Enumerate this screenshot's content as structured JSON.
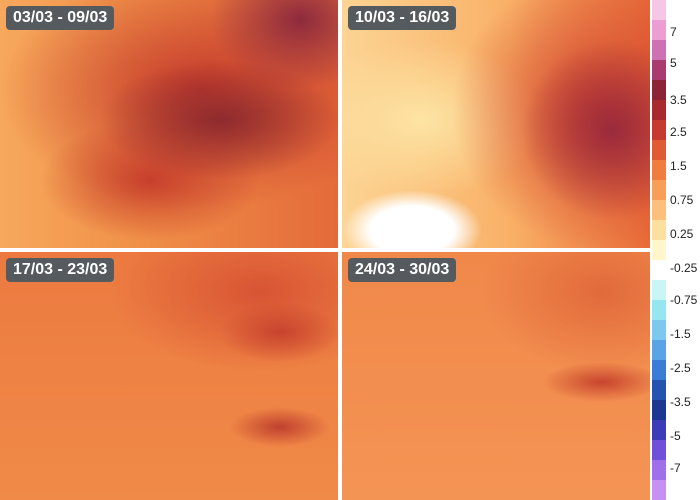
{
  "panels": [
    {
      "label": "03/03 - 09/03"
    },
    {
      "label": "10/03 - 16/03"
    },
    {
      "label": "17/03 - 23/03"
    },
    {
      "label": "24/03 - 30/03"
    }
  ],
  "legend": {
    "labels": [
      "7",
      "5",
      "3.5",
      "2.5",
      "1.5",
      "0.75",
      "0.25",
      "-0.25",
      "-0.75",
      "-1.5",
      "-2.5",
      "-3.5",
      "-5",
      "-7"
    ]
  }
}
